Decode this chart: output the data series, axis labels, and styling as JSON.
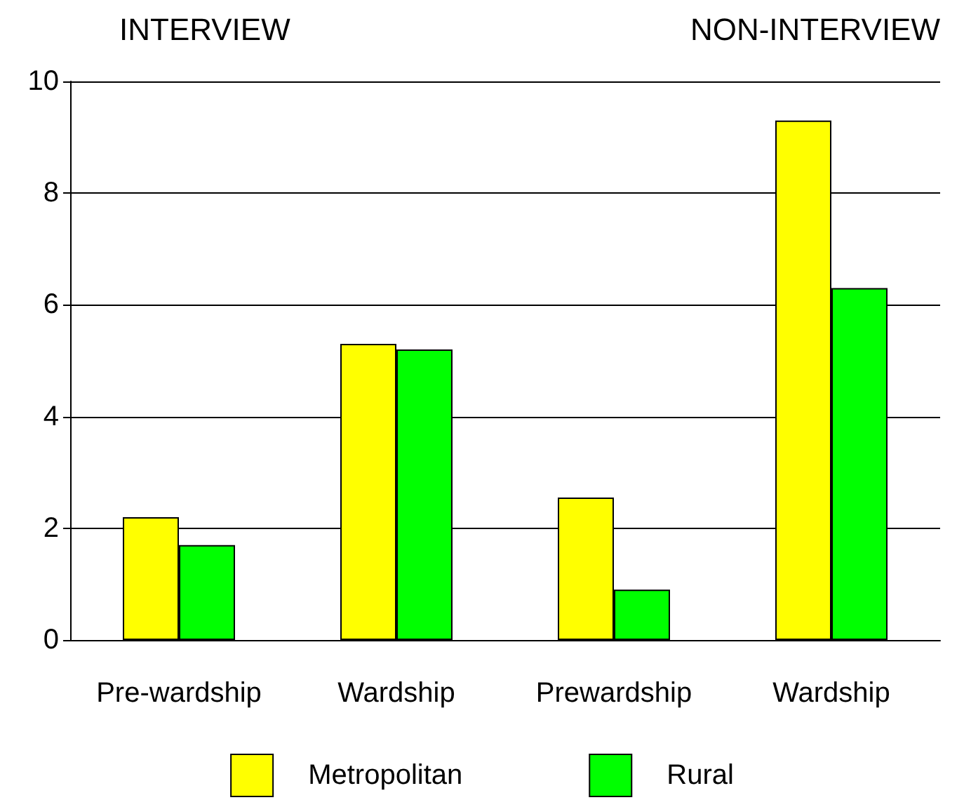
{
  "chart_data": {
    "type": "bar",
    "annotations": [
      "INTERVIEW",
      "NON-INTERVIEW"
    ],
    "categories": [
      "Pre-wardship",
      "Wardship",
      "Prewardship",
      "Wardship"
    ],
    "series": [
      {
        "name": "Metropolitan",
        "color": "#ffff00",
        "values": [
          2.2,
          5.3,
          2.55,
          9.3
        ]
      },
      {
        "name": "Rural",
        "color": "#00ff00",
        "values": [
          1.7,
          5.2,
          0.9,
          6.3
        ]
      }
    ],
    "ylim": [
      0,
      10
    ],
    "yticks": [
      0,
      2,
      4,
      6,
      8,
      10
    ],
    "grid": "y",
    "legend": "bottom"
  }
}
